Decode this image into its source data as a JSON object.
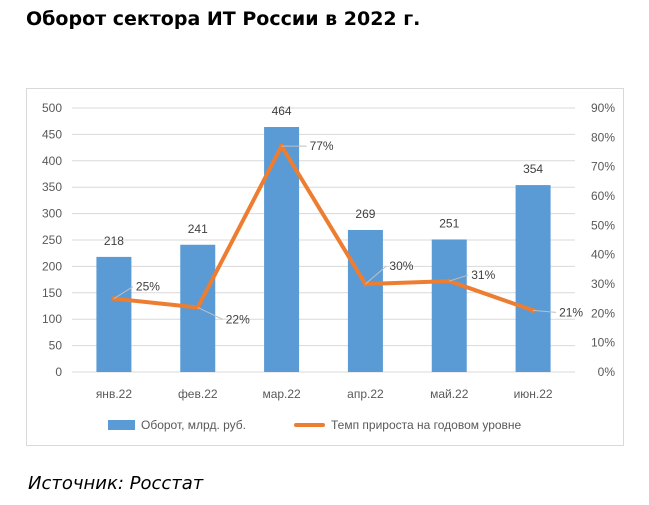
{
  "title": "Оборот сектора ИТ России в 2022 г.",
  "source": "Источник: Росстат",
  "colors": {
    "bar": "#5b9bd5",
    "line": "#ed7d31",
    "grid": "#d9d9d9",
    "axis_text": "#595959",
    "label_text": "#404040"
  },
  "chart_data": {
    "type": "bar",
    "categories": [
      "янв.22",
      "фев.22",
      "мар.22",
      "апр.22",
      "май.22",
      "июн.22"
    ],
    "series": [
      {
        "name": "Оборот, млрд. руб.",
        "type": "bar",
        "axis": "left",
        "values": [
          218,
          241,
          464,
          269,
          251,
          354
        ],
        "labels": [
          "218",
          "241",
          "464",
          "269",
          "251",
          "354"
        ]
      },
      {
        "name": "Темп прироста на годовом уровне",
        "type": "line",
        "axis": "right",
        "values": [
          25,
          22,
          77,
          30,
          31,
          21
        ],
        "labels": [
          "25%",
          "22%",
          "77%",
          "30%",
          "31%",
          "21%"
        ]
      }
    ],
    "y_left": {
      "min": 0,
      "max": 500,
      "ticks": [
        "0",
        "50",
        "100",
        "150",
        "200",
        "250",
        "300",
        "350",
        "400",
        "450",
        "500"
      ]
    },
    "y_right": {
      "min": 0,
      "max": 90,
      "ticks": [
        "0%",
        "10%",
        "20%",
        "30%",
        "40%",
        "50%",
        "60%",
        "70%",
        "80%",
        "90%"
      ]
    },
    "grid": true,
    "legend_position": "bottom"
  }
}
